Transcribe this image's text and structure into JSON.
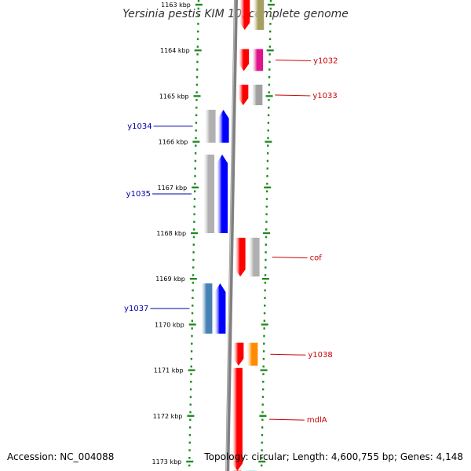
{
  "title": "Yersinia pestis KIM 10, complete genome",
  "footer": {
    "accession": "Accession: NC_004088",
    "summary": "Topology: circular; Length: 4,600,755 bp; Genes: 4,148"
  },
  "colors": {
    "forward_gene": "#ff0000",
    "reverse_gene": "#0000ff",
    "forward_label": "#cc0000",
    "reverse_label": "#0000aa",
    "tick": "#228b22",
    "backbone": "#808080"
  },
  "ticks": [
    {
      "kbp": 1163,
      "label": "1163 kbp"
    },
    {
      "kbp": 1164,
      "label": "1164 kbp"
    },
    {
      "kbp": 1165,
      "label": "1165 kbp"
    },
    {
      "kbp": 1166,
      "label": "1166 kbp"
    },
    {
      "kbp": 1167,
      "label": "1167 kbp"
    },
    {
      "kbp": 1168,
      "label": "1168 kbp"
    },
    {
      "kbp": 1169,
      "label": "1169 kbp"
    },
    {
      "kbp": 1170,
      "label": "1170 kbp"
    },
    {
      "kbp": 1171,
      "label": "1171 kbp"
    },
    {
      "kbp": 1172,
      "label": "1172 kbp"
    },
    {
      "kbp": 1173,
      "label": "1173 kbp"
    }
  ],
  "genes": [
    {
      "name": "",
      "strand": "+",
      "start_kbp": 1162.7,
      "end_kbp": 1163.55,
      "cog_color": "#a6a060"
    },
    {
      "name": "y1032",
      "strand": "+",
      "start_kbp": 1163.97,
      "end_kbp": 1164.45,
      "cog_color": "#e0148c"
    },
    {
      "name": "y1033",
      "strand": "+",
      "start_kbp": 1164.75,
      "end_kbp": 1165.2,
      "cog_color": "#a0a0a0"
    },
    {
      "name": "y1034",
      "strand": "-",
      "start_kbp": 1165.3,
      "end_kbp": 1166.02,
      "cog_color": "#b0b0b0"
    },
    {
      "name": "y1035",
      "strand": "-",
      "start_kbp": 1166.28,
      "end_kbp": 1168.0,
      "cog_color": "#b0b0b0"
    },
    {
      "name": "cof",
      "strand": "+",
      "start_kbp": 1168.1,
      "end_kbp": 1168.95,
      "cog_color": "#b0b0b0"
    },
    {
      "name": "y1037",
      "strand": "-",
      "start_kbp": 1169.1,
      "end_kbp": 1170.2,
      "cog_color": "#4682b4"
    },
    {
      "name": "y1038",
      "strand": "+",
      "start_kbp": 1170.4,
      "end_kbp": 1170.9,
      "cog_color": "#ff8c00"
    },
    {
      "name": "mdlA",
      "strand": "+",
      "start_kbp": 1170.95,
      "end_kbp": 1173.2,
      "cog_color": ""
    },
    {
      "name": "",
      "strand": "+",
      "start_kbp": 1173.2,
      "end_kbp": 1173.5,
      "cog_color": "#40e0c0"
    }
  ]
}
